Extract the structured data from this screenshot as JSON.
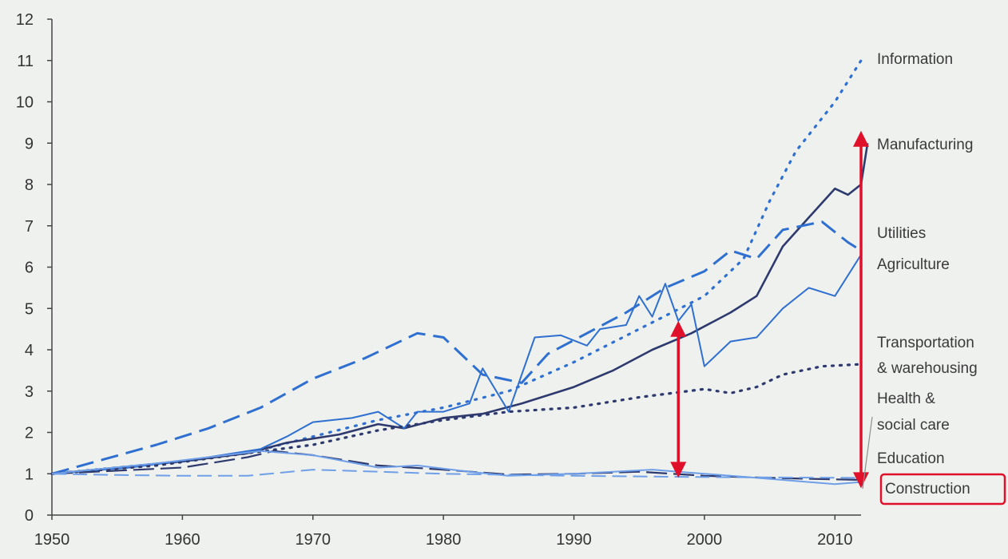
{
  "chart_data": {
    "type": "line",
    "title": "",
    "xlabel": "",
    "ylabel": "",
    "xlim": [
      1950,
      2012
    ],
    "ylim": [
      0,
      12
    ],
    "x_ticks": [
      1950,
      1960,
      1970,
      1980,
      1990,
      2000,
      2010
    ],
    "y_ticks": [
      0,
      1,
      2,
      3,
      4,
      5,
      6,
      7,
      8,
      9,
      10,
      11,
      12
    ],
    "grid": false,
    "legend": "direct labels at right",
    "highlighted_label": "Construction",
    "colors": {
      "dark": "#2e3a6e",
      "blue": "#2e6fd0",
      "light": "#6f9fe8",
      "arrow": "#e0102a",
      "axis": "#444444"
    },
    "series": [
      {
        "name": "Information",
        "style": "dotted",
        "points": [
          [
            1950,
            1.0
          ],
          [
            1955,
            1.15
          ],
          [
            1960,
            1.3
          ],
          [
            1965,
            1.5
          ],
          [
            1970,
            1.9
          ],
          [
            1975,
            2.3
          ],
          [
            1980,
            2.6
          ],
          [
            1985,
            3.0
          ],
          [
            1990,
            3.7
          ],
          [
            1995,
            4.5
          ],
          [
            2000,
            5.3
          ],
          [
            2003,
            6.2
          ],
          [
            2005,
            7.6
          ],
          [
            2007,
            8.8
          ],
          [
            2010,
            10.0
          ],
          [
            2012,
            11.0
          ]
        ]
      },
      {
        "name": "Manufacturing",
        "style": "solid",
        "points": [
          [
            1950,
            1.0
          ],
          [
            1955,
            1.15
          ],
          [
            1960,
            1.3
          ],
          [
            1965,
            1.5
          ],
          [
            1968,
            1.75
          ],
          [
            1972,
            1.95
          ],
          [
            1975,
            2.2
          ],
          [
            1977,
            2.1
          ],
          [
            1980,
            2.35
          ],
          [
            1983,
            2.45
          ],
          [
            1986,
            2.7
          ],
          [
            1990,
            3.1
          ],
          [
            1993,
            3.5
          ],
          [
            1996,
            4.0
          ],
          [
            1999,
            4.4
          ],
          [
            2002,
            4.9
          ],
          [
            2004,
            5.3
          ],
          [
            2006,
            6.5
          ],
          [
            2008,
            7.2
          ],
          [
            2010,
            7.9
          ],
          [
            2011,
            7.75
          ],
          [
            2012,
            8.0
          ],
          [
            2012.5,
            9.0
          ]
        ]
      },
      {
        "name": "Utilities",
        "style": "dashed",
        "points": [
          [
            1950,
            1.0
          ],
          [
            1954,
            1.35
          ],
          [
            1958,
            1.7
          ],
          [
            1962,
            2.1
          ],
          [
            1966,
            2.6
          ],
          [
            1970,
            3.3
          ],
          [
            1974,
            3.8
          ],
          [
            1978,
            4.4
          ],
          [
            1980,
            4.3
          ],
          [
            1983,
            3.4
          ],
          [
            1986,
            3.2
          ],
          [
            1988,
            3.9
          ],
          [
            1991,
            4.4
          ],
          [
            1994,
            4.9
          ],
          [
            1997,
            5.5
          ],
          [
            2000,
            5.9
          ],
          [
            2002,
            6.4
          ],
          [
            2004,
            6.2
          ],
          [
            2006,
            6.9
          ],
          [
            2009,
            7.1
          ],
          [
            2011,
            6.6
          ],
          [
            2012,
            6.4
          ]
        ]
      },
      {
        "name": "Agriculture",
        "style": "solid",
        "points": [
          [
            1950,
            1.0
          ],
          [
            1956,
            1.15
          ],
          [
            1962,
            1.4
          ],
          [
            1966,
            1.6
          ],
          [
            1968,
            1.9
          ],
          [
            1970,
            2.25
          ],
          [
            1973,
            2.35
          ],
          [
            1975,
            2.5
          ],
          [
            1977,
            2.1
          ],
          [
            1978,
            2.5
          ],
          [
            1980,
            2.5
          ],
          [
            1982,
            2.7
          ],
          [
            1983,
            3.55
          ],
          [
            1985,
            2.5
          ],
          [
            1987,
            4.3
          ],
          [
            1989,
            4.35
          ],
          [
            1991,
            4.1
          ],
          [
            1992,
            4.5
          ],
          [
            1994,
            4.6
          ],
          [
            1995,
            5.3
          ],
          [
            1996,
            4.8
          ],
          [
            1997,
            5.6
          ],
          [
            1998,
            4.7
          ],
          [
            1999,
            5.1
          ],
          [
            2000,
            3.6
          ],
          [
            2002,
            4.2
          ],
          [
            2004,
            4.3
          ],
          [
            2006,
            5.0
          ],
          [
            2008,
            5.5
          ],
          [
            2010,
            5.3
          ],
          [
            2012,
            6.3
          ]
        ]
      },
      {
        "name": "Transportation & warehousing",
        "style": "dotted",
        "points": [
          [
            1950,
            1.0
          ],
          [
            1958,
            1.2
          ],
          [
            1965,
            1.5
          ],
          [
            1970,
            1.7
          ],
          [
            1975,
            2.05
          ],
          [
            1980,
            2.3
          ],
          [
            1985,
            2.5
          ],
          [
            1990,
            2.6
          ],
          [
            1995,
            2.85
          ],
          [
            2000,
            3.05
          ],
          [
            2002,
            2.95
          ],
          [
            2004,
            3.1
          ],
          [
            2006,
            3.4
          ],
          [
            2009,
            3.6
          ],
          [
            2012,
            3.65
          ]
        ]
      },
      {
        "name": "Health & social care",
        "style": "dashed",
        "points": [
          [
            1950,
            1.0
          ],
          [
            1960,
            1.15
          ],
          [
            1965,
            1.4
          ],
          [
            1967,
            1.55
          ],
          [
            1970,
            1.45
          ],
          [
            1975,
            1.2
          ],
          [
            1980,
            1.1
          ],
          [
            1985,
            0.98
          ],
          [
            1990,
            1.0
          ],
          [
            1995,
            1.05
          ],
          [
            2000,
            0.95
          ],
          [
            2005,
            0.9
          ],
          [
            2012,
            0.85
          ]
        ]
      },
      {
        "name": "Education",
        "style": "dashed",
        "points": [
          [
            1950,
            1.0
          ],
          [
            1955,
            0.97
          ],
          [
            1960,
            0.95
          ],
          [
            1965,
            0.95
          ],
          [
            1970,
            1.1
          ],
          [
            1975,
            1.05
          ],
          [
            1980,
            1.0
          ],
          [
            1990,
            0.95
          ],
          [
            2000,
            0.92
          ],
          [
            2012,
            0.9
          ]
        ]
      },
      {
        "name": "Construction",
        "style": "solid",
        "points": [
          [
            1950,
            1.0
          ],
          [
            1958,
            1.25
          ],
          [
            1962,
            1.4
          ],
          [
            1966,
            1.55
          ],
          [
            1970,
            1.45
          ],
          [
            1975,
            1.15
          ],
          [
            1978,
            1.2
          ],
          [
            1982,
            1.05
          ],
          [
            1985,
            0.95
          ],
          [
            1990,
            1.0
          ],
          [
            1993,
            1.05
          ],
          [
            1996,
            1.1
          ],
          [
            1998,
            1.05
          ],
          [
            2002,
            0.95
          ],
          [
            2006,
            0.85
          ],
          [
            2010,
            0.75
          ],
          [
            2012,
            0.8
          ]
        ]
      }
    ],
    "annotations": [
      {
        "type": "double-arrow",
        "x": 1998,
        "y_from": 0.9,
        "y_to": 4.7
      },
      {
        "type": "double-arrow",
        "x": 2012,
        "y_from": 0.65,
        "y_to": 9.3
      }
    ]
  },
  "labels": {
    "information": "Information",
    "manufacturing": "Manufacturing",
    "utilities": "Utilities",
    "agriculture": "Agriculture",
    "transport_line1": "Transportation",
    "transport_line2": "& warehousing",
    "health_line1": "Health  &",
    "health_line2": "social care",
    "education": "Education",
    "construction": "Construction"
  }
}
